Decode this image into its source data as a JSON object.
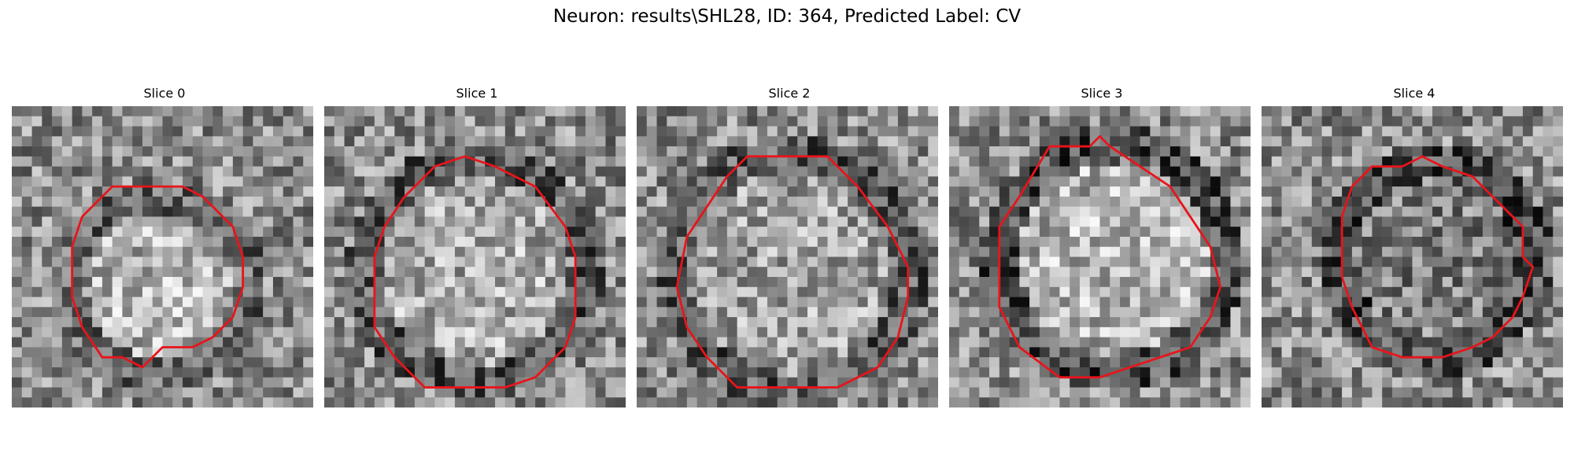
{
  "title": "Neuron: results\\SHL28, ID: 364, Predicted Label: CV",
  "colors": {
    "contour": "#e8141b",
    "background": "#ffffff"
  },
  "grid_size": 30,
  "panels": [
    {
      "title": "Slice 0",
      "seed": 11,
      "contour": [
        [
          10,
          8
        ],
        [
          17,
          8
        ],
        [
          19,
          9
        ],
        [
          22,
          12
        ],
        [
          23,
          15
        ],
        [
          23,
          18
        ],
        [
          22,
          21
        ],
        [
          20,
          23
        ],
        [
          18,
          24
        ],
        [
          15,
          24
        ],
        [
          13,
          26
        ],
        [
          11,
          25
        ],
        [
          9,
          25
        ],
        [
          7,
          22
        ],
        [
          6,
          19
        ],
        [
          6,
          14
        ],
        [
          7,
          11
        ]
      ],
      "ring_darkness": 0.15,
      "inner_brightness": 0.15
    },
    {
      "title": "Slice 1",
      "seed": 23,
      "contour": [
        [
          11,
          6
        ],
        [
          14,
          5
        ],
        [
          17,
          6
        ],
        [
          21,
          8
        ],
        [
          24,
          12
        ],
        [
          25,
          15
        ],
        [
          25,
          21
        ],
        [
          24,
          24
        ],
        [
          21,
          27
        ],
        [
          18,
          28
        ],
        [
          10,
          28
        ],
        [
          7,
          25
        ],
        [
          5,
          22
        ],
        [
          5,
          15
        ],
        [
          6,
          12
        ],
        [
          8,
          9
        ]
      ],
      "ring_darkness": 0.2,
      "inner_brightness": 0.12
    },
    {
      "title": "Slice 2",
      "seed": 37,
      "contour": [
        [
          11,
          5
        ],
        [
          19,
          5
        ],
        [
          22,
          8
        ],
        [
          25,
          12
        ],
        [
          27,
          16
        ],
        [
          27,
          19
        ],
        [
          26,
          23
        ],
        [
          24,
          26
        ],
        [
          20,
          28
        ],
        [
          10,
          28
        ],
        [
          7,
          25
        ],
        [
          5,
          22
        ],
        [
          4,
          18
        ],
        [
          5,
          13
        ],
        [
          7,
          10
        ],
        [
          9,
          7
        ]
      ],
      "ring_darkness": 0.2,
      "inner_brightness": 0.08
    },
    {
      "title": "Slice 3",
      "seed": 51,
      "contour": [
        [
          10,
          4
        ],
        [
          14,
          4
        ],
        [
          15,
          3
        ],
        [
          16,
          4
        ],
        [
          19,
          6
        ],
        [
          22,
          8
        ],
        [
          24,
          11
        ],
        [
          26,
          14
        ],
        [
          27,
          18
        ],
        [
          26,
          21
        ],
        [
          24,
          24
        ],
        [
          21,
          25
        ],
        [
          18,
          26
        ],
        [
          15,
          27
        ],
        [
          11,
          27
        ],
        [
          7,
          24
        ],
        [
          5,
          20
        ],
        [
          5,
          12
        ],
        [
          7,
          9
        ]
      ],
      "ring_darkness": 0.25,
      "inner_brightness": 0.15
    },
    {
      "title": "Slice 4",
      "seed": 67,
      "contour": [
        [
          11,
          6
        ],
        [
          14,
          6
        ],
        [
          16,
          5
        ],
        [
          18,
          6
        ],
        [
          21,
          7
        ],
        [
          24,
          10
        ],
        [
          26,
          12
        ],
        [
          26,
          15
        ],
        [
          27,
          16
        ],
        [
          26,
          19
        ],
        [
          25,
          21
        ],
        [
          23,
          23
        ],
        [
          21,
          24
        ],
        [
          18,
          25
        ],
        [
          14,
          25
        ],
        [
          11,
          24
        ],
        [
          10,
          22
        ],
        [
          9,
          20
        ],
        [
          8,
          17
        ],
        [
          8,
          11
        ],
        [
          9,
          8
        ]
      ],
      "ring_darkness": 0.25,
      "inner_brightness": -0.05
    }
  ]
}
